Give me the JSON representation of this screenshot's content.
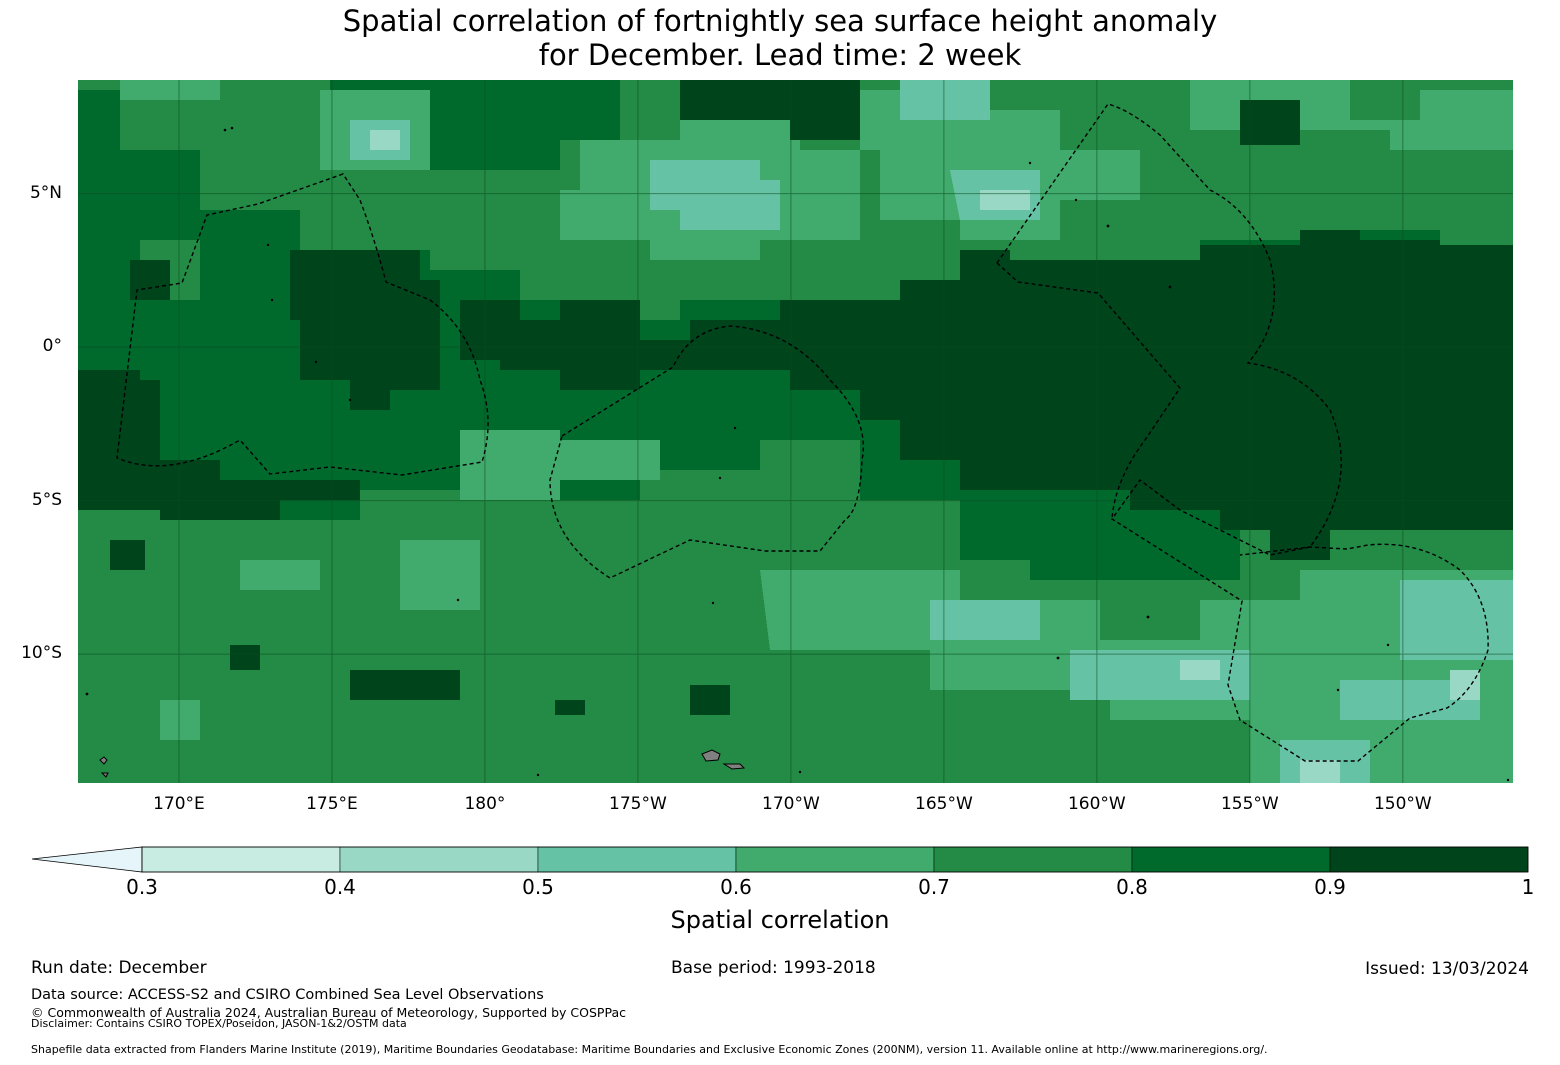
{
  "title": {
    "line1": "Spatial correlation of fortnightly sea surface height anomaly",
    "line2": "for December. Lead time: 2 week"
  },
  "map": {
    "lon_range_deg": [
      166.7,
      213.6
    ],
    "lat_range_deg": [
      -14.2,
      8.7
    ],
    "y_ticks": [
      {
        "label": "5°N",
        "lat": 5
      },
      {
        "label": "0°",
        "lat": 0
      },
      {
        "label": "5°S",
        "lat": -5
      },
      {
        "label": "10°S",
        "lat": -10
      }
    ],
    "x_ticks": [
      {
        "label": "170°E",
        "lon": 170
      },
      {
        "label": "175°E",
        "lon": 175
      },
      {
        "label": "180°",
        "lon": 180
      },
      {
        "label": "175°W",
        "lon": 185
      },
      {
        "label": "170°W",
        "lon": 190
      },
      {
        "label": "165°W",
        "lon": 195
      },
      {
        "label": "160°W",
        "lon": 200
      },
      {
        "label": "155°W",
        "lon": 205
      },
      {
        "label": "150°W",
        "lon": 210
      }
    ],
    "colors": {
      "ocean_base": "#006a2d",
      "gridline": "#0c4a1f",
      "land": "#808080",
      "boundary": "#000000"
    }
  },
  "colorbar": {
    "label": "Spatial correlation",
    "extend": "min",
    "under_color": "#e5f5f9",
    "levels": [
      {
        "from": 0.3,
        "to": 0.4,
        "color": "#c8ebe2"
      },
      {
        "from": 0.4,
        "to": 0.5,
        "color": "#98d8c5"
      },
      {
        "from": 0.5,
        "to": 0.6,
        "color": "#66c2a4"
      },
      {
        "from": 0.6,
        "to": 0.7,
        "color": "#41ab6d"
      },
      {
        "from": 0.7,
        "to": 0.8,
        "color": "#238b45"
      },
      {
        "from": 0.8,
        "to": 0.9,
        "color": "#006a2d"
      },
      {
        "from": 0.9,
        "to": 1.0,
        "color": "#00441b"
      }
    ],
    "tick_labels": [
      "0.3",
      "0.4",
      "0.5",
      "0.6",
      "0.7",
      "0.8",
      "0.9",
      "1"
    ]
  },
  "footer": {
    "run_date": "Run date: December",
    "base_period": "Base period: 1993-2018",
    "issued": "Issued: 13/03/2024",
    "data_source": "Data source: ACCESS-S2 and CSIRO Combined Sea Level Observations",
    "copyright": "© Commonwealth of Australia 2024, Australian Bureau of Meteorology, Supported by COSPPac",
    "disclaimer": "Disclaimer: Contains CSIRO TOPEX/Poseidon, JASON-1&2/OSTM data",
    "shapefile": "Shapefile data extracted from Flanders Marine Institute (2019), Maritime Boundaries Geodatabase: Maritime Boundaries and Exclusive Economic Zones (200NM), version 11. Available online at http://www.marineregions.org/."
  }
}
